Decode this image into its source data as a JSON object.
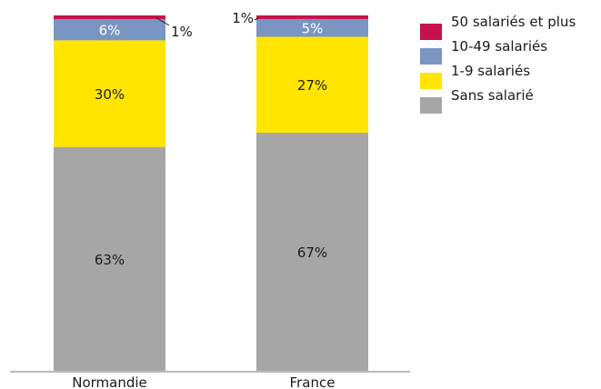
{
  "chart_data": {
    "type": "stacked-bar",
    "categories": [
      "Normandie",
      "France"
    ],
    "series": [
      {
        "name": "Sans salarié",
        "color": "#a6a6a6",
        "values": [
          63,
          67
        ],
        "labels": [
          "63%",
          "67%"
        ]
      },
      {
        "name": "1-9 salariés",
        "color": "#ffe500",
        "values": [
          30,
          27
        ],
        "labels": [
          "30%",
          "27%"
        ]
      },
      {
        "name": "10-49 salariés",
        "color": "#7a95c2",
        "values": [
          6,
          5
        ],
        "labels": [
          "6%",
          "5%"
        ]
      },
      {
        "name": "50 salariés et plus",
        "color": "#c8104a",
        "values": [
          1,
          1
        ],
        "labels": [
          "1%",
          "1%"
        ]
      }
    ],
    "ylim": [
      0,
      100
    ],
    "legend_order": [
      "50 salariés et plus",
      "10-49 salariés",
      "1-9 salariés",
      "Sans salarié"
    ],
    "legend_position": "top-right",
    "grid": false
  }
}
